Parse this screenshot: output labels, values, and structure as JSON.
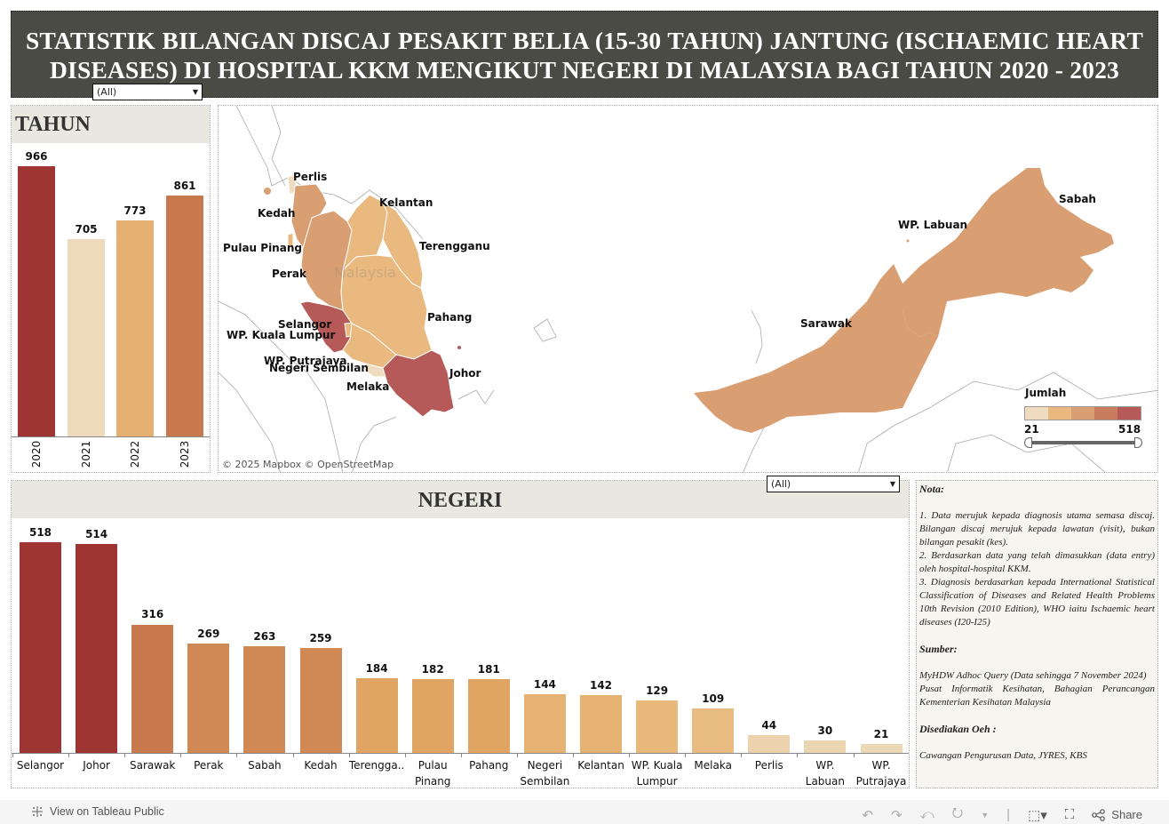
{
  "title": "STATISTIK BILANGAN DISCAJ PESAKIT BELIA (15-30 TAHUN) JANTUNG (ISCHAEMIC HEART DISEASES) DI HOSPITAL KKM MENGIKUT NEGERI DI MALAYSIA BAGI TAHUN 2020 - 2023",
  "filters": {
    "tahun_filter": "(All)",
    "negeri_filter": "(All)"
  },
  "tahun_panel": {
    "header": "TAHUN"
  },
  "negeri_panel": {
    "header": "NEGERI"
  },
  "map": {
    "labels": {
      "perlis": "Perlis",
      "kedah": "Kedah",
      "kelantan": "Kelantan",
      "pulau_pinang": "Pulau Pinang",
      "terengganu": "Terengganu",
      "perak": "Perak",
      "pahang": "Pahang",
      "selangor": "Selangor",
      "kuala_lumpur": "WP. Kuala Lumpur",
      "putrajaya": "WP. Putrajaya",
      "negeri_sembilan": "Negeri Sembilan",
      "melaka": "Melaka",
      "johor": "Johor",
      "sabah": "Sabah",
      "labuan": "WP. Labuan",
      "sarawak": "Sarawak"
    },
    "watermark": "Malaysia",
    "attribution": "© 2025 Mapbox  © OpenStreetMap",
    "legend": {
      "title": "Jumlah",
      "min": "21",
      "max": "518",
      "colors": [
        "#efdcc0",
        "#e9b97f",
        "#d99f72",
        "#c97b5e",
        "#b55a58"
      ]
    }
  },
  "nota": {
    "nota_heading": "Nota:",
    "nota_1": "1. Data merujuk kepada diagnosis utama semasa discaj. Bilangan discaj merujuk kepada  lawatan (visit), bukan bilangan pesakit (kes).",
    "nota_2": "2. Berdasarkan data yang telah dimasukkan (data entry) oleh hospital-hospital KKM.",
    "nota_3": "3. Diagnosis berdasarkan kepada International Statistical Classification of Diseases and Related Health Problems 10th Revision (2010 Edition), WHO iaitu Ischaemic heart diseases (I20-I25)",
    "sumber_heading": "Sumber:",
    "sumber_1": "MyHDW Adhoc Query (Data sehingga 7 November 2024)",
    "sumber_2": "Pusat Informatik Kesihatan, Bahagian Perancangan Kementerian Kesihatan Malaysia",
    "disediakan_heading": "Disediakan Oeh :",
    "disediakan_1": "Cawangan Pengurusan Data, JYRES, KBS"
  },
  "footer": {
    "view_on": "View on Tableau Public",
    "share": "Share"
  },
  "chart_data": [
    {
      "type": "bar",
      "title": "TAHUN",
      "categories": [
        "2020",
        "2021",
        "2022",
        "2023"
      ],
      "values": [
        966,
        705,
        773,
        861
      ],
      "colors": [
        "#9e3533",
        "#eddabb",
        "#e5b070",
        "#c8794e"
      ],
      "xlabel": "",
      "ylabel": "",
      "ylim": [
        0,
        1050
      ]
    },
    {
      "type": "bar",
      "title": "NEGERI",
      "categories": [
        "Selangor",
        "Johor",
        "Sarawak",
        "Perak",
        "Sabah",
        "Kedah",
        "Terengga..",
        "Pulau Pinang",
        "Pahang",
        "Negeri Sembilan",
        "Kelantan",
        "WP. Kuala Lumpur",
        "Melaka",
        "Perlis",
        "WP. Labuan",
        "WP. Putrajaya"
      ],
      "values": [
        518,
        514,
        316,
        269,
        263,
        259,
        184,
        182,
        181,
        144,
        142,
        129,
        109,
        44,
        30,
        21
      ],
      "colors": [
        "#9e3533",
        "#9e3533",
        "#c8794e",
        "#d08955",
        "#d08955",
        "#d08955",
        "#e0a463",
        "#e0a463",
        "#e0a463",
        "#e5b274",
        "#e5b274",
        "#e8b97b",
        "#e8bb80",
        "#ecd3ae",
        "#ecd6b2",
        "#ecd8b6"
      ],
      "xlabel": "",
      "ylabel": "",
      "ylim": [
        0,
        560
      ]
    },
    {
      "type": "heatmap",
      "title": "Choropleth map of Malaysia by state (Jumlah)",
      "legend": {
        "title": "Jumlah",
        "min": 21,
        "max": 518
      }
    }
  ]
}
